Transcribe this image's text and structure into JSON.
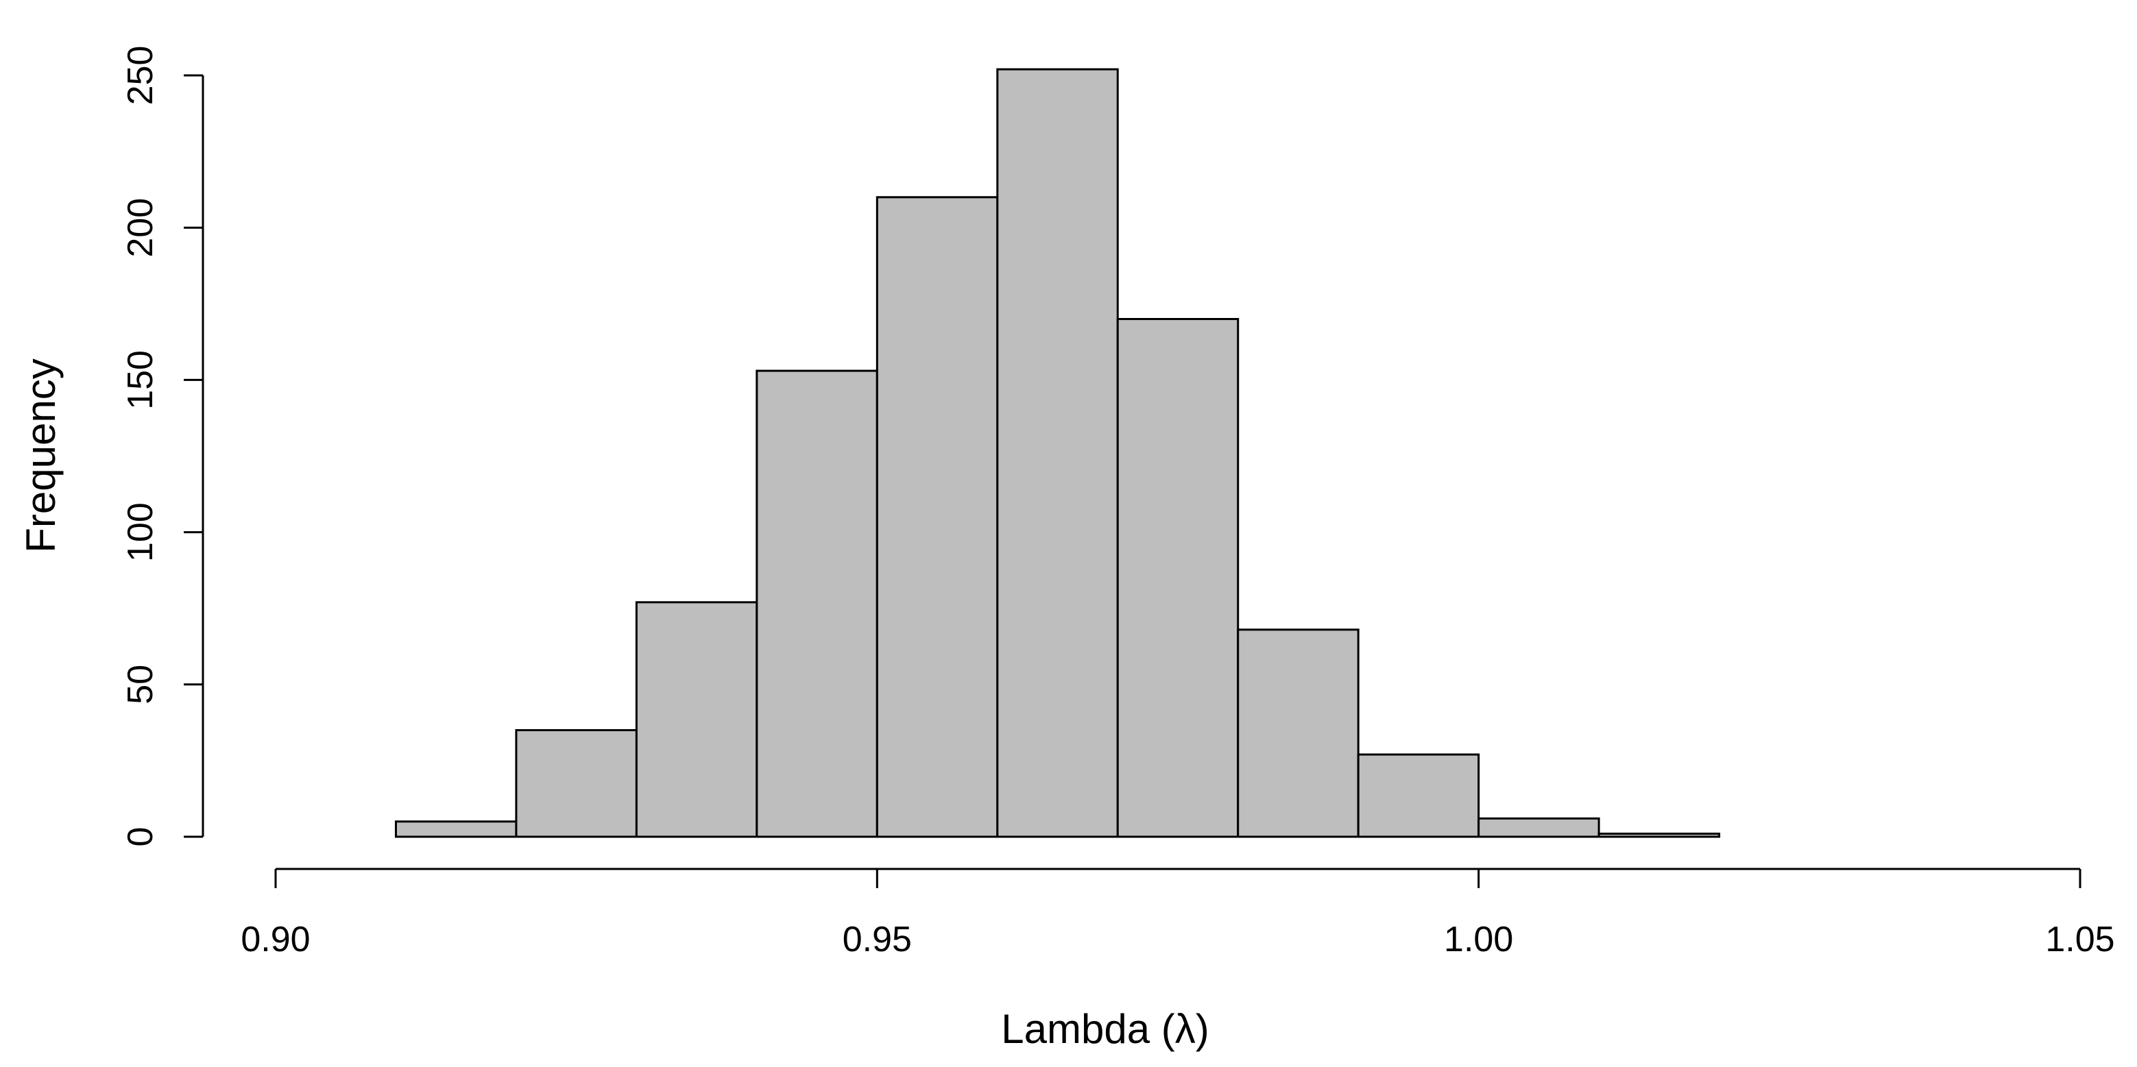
{
  "chart_data": {
    "type": "bar",
    "subtype": "histogram",
    "xlabel": "Lambda (λ)",
    "ylabel": "Frequency",
    "xlim": [
      0.9,
      1.05
    ],
    "ylim": [
      0,
      250
    ],
    "x_ticks": [
      0.9,
      0.95,
      1.0,
      1.05
    ],
    "x_tick_labels": [
      "0.90",
      "0.95",
      "1.00",
      "1.05"
    ],
    "y_ticks": [
      0,
      50,
      100,
      150,
      200,
      250
    ],
    "y_tick_labels": [
      "0",
      "50",
      "100",
      "150",
      "200",
      "250"
    ],
    "bin_edges": [
      0.91,
      0.92,
      0.93,
      0.94,
      0.95,
      0.96,
      0.97,
      0.98,
      0.99,
      1.0,
      1.01,
      1.02
    ],
    "values": [
      5,
      35,
      77,
      153,
      210,
      252,
      170,
      68,
      27,
      6,
      1
    ],
    "grid": false,
    "colors": {
      "bar_fill": "#bebebe",
      "bar_stroke": "#000000"
    }
  }
}
